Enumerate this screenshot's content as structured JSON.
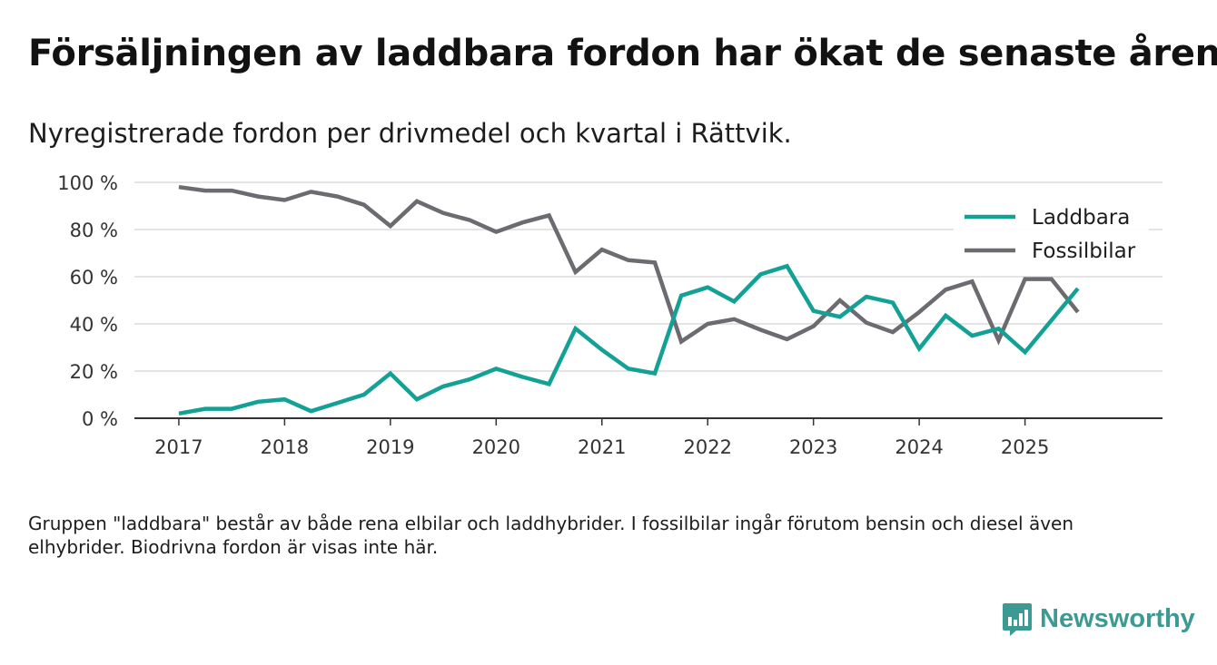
{
  "title": "Försäljningen av laddbara fordon har ökat de senaste åren",
  "subtitle": "Nyregistrerade fordon per drivmedel och kvartal i Rättvik.",
  "note": "Gruppen \"laddbara\" består av både rena elbilar och laddhybrider. I fossilbilar ingår förutom bensin och diesel även elhybrider. Biodrivna fordon är visas inte här.",
  "brand": {
    "name": "Newsworthy",
    "color": "#3d9a92"
  },
  "chart_data": {
    "type": "line",
    "x": [
      2017.0,
      2017.25,
      2017.5,
      2017.75,
      2018.0,
      2018.25,
      2018.5,
      2018.75,
      2019.0,
      2019.25,
      2019.5,
      2019.75,
      2020.0,
      2020.25,
      2020.5,
      2020.75,
      2021.0,
      2021.25,
      2021.5,
      2021.75,
      2022.0,
      2022.25,
      2022.5,
      2022.75,
      2023.0,
      2023.25,
      2023.5,
      2023.75,
      2024.0,
      2024.25,
      2024.5,
      2024.75,
      2025.0,
      2025.25,
      2025.5
    ],
    "series": [
      {
        "name": "Laddbara",
        "color": "#14a195",
        "values": [
          2,
          4,
          4,
          7,
          8,
          3,
          6.5,
          10,
          19,
          8,
          13.5,
          16.5,
          21,
          17.5,
          14.5,
          38,
          29,
          21,
          19,
          52,
          55.5,
          49.5,
          61,
          64.5,
          45.5,
          43,
          51.5,
          49,
          29.5,
          43.5,
          35,
          38,
          28,
          41.5,
          55
        ]
      },
      {
        "name": "Fossilbilar",
        "color": "#6b6b70",
        "values": [
          98,
          96.5,
          96.5,
          94,
          92.5,
          96,
          94,
          90.5,
          81.5,
          92,
          87,
          84,
          79,
          83,
          86,
          62,
          71.5,
          67,
          66,
          32.5,
          40,
          42,
          37.5,
          33.5,
          39,
          50,
          40.5,
          36.5,
          45,
          54.5,
          58,
          33,
          59,
          59,
          45
        ]
      }
    ],
    "title": "Försäljningen av laddbara fordon har ökat de senaste åren",
    "xlabel": "",
    "ylabel": "",
    "xticks": [
      2017,
      2018,
      2019,
      2020,
      2021,
      2022,
      2023,
      2024,
      2025
    ],
    "xtick_labels": [
      "2017",
      "2018",
      "2019",
      "2020",
      "2021",
      "2022",
      "2023",
      "2024",
      "2025"
    ],
    "yticks": [
      0,
      20,
      40,
      60,
      80,
      100
    ],
    "ytick_labels": [
      "0 %",
      "20 %",
      "40 %",
      "60 %",
      "80 %",
      "100 %"
    ],
    "ylim": [
      0,
      100
    ],
    "xlim": [
      2016.58,
      2026.3
    ],
    "grid": true,
    "legend": "top-right"
  }
}
